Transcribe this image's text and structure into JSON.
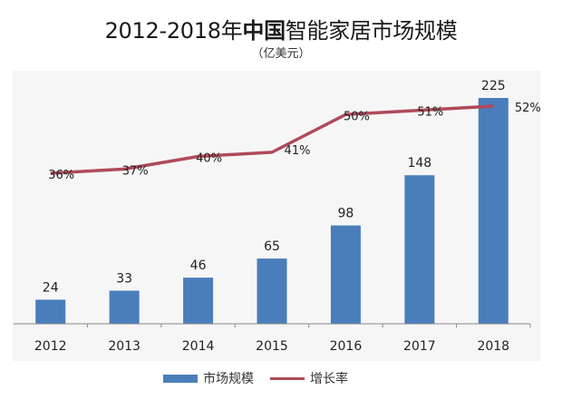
{
  "title": {
    "prefix": "2012-2018年",
    "bold": "中国",
    "suffix": "智能家居市场规模",
    "unit": "（亿美元）"
  },
  "legend": {
    "bar_label": "市场规模",
    "line_label": "增长率"
  },
  "colors": {
    "bar": "#4a7ebb",
    "line": "#b04a5a",
    "plot_bg": "#f6f6f6",
    "axis": "#888888"
  },
  "chart_data": {
    "type": "bar+line",
    "title": "2012-2018年中国智能家居市场规模",
    "subtitle": "（亿美元）",
    "categories": [
      "2012",
      "2013",
      "2014",
      "2015",
      "2016",
      "2017",
      "2018"
    ],
    "series": [
      {
        "name": "市场规模",
        "type": "bar",
        "values": [
          24,
          33,
          46,
          65,
          98,
          148,
          225
        ],
        "labels": [
          "24",
          "33",
          "46",
          "65",
          "98",
          "148",
          "225"
        ]
      },
      {
        "name": "增长率",
        "type": "line",
        "values": [
          36,
          37,
          40,
          41,
          50,
          51,
          52
        ],
        "labels": [
          "36%",
          "37%",
          "40%",
          "41%",
          "50%",
          "51%",
          "52%"
        ],
        "unit": "%"
      }
    ],
    "xlabel": "",
    "ylabel": "",
    "grid": false,
    "legend_position": "bottom"
  }
}
